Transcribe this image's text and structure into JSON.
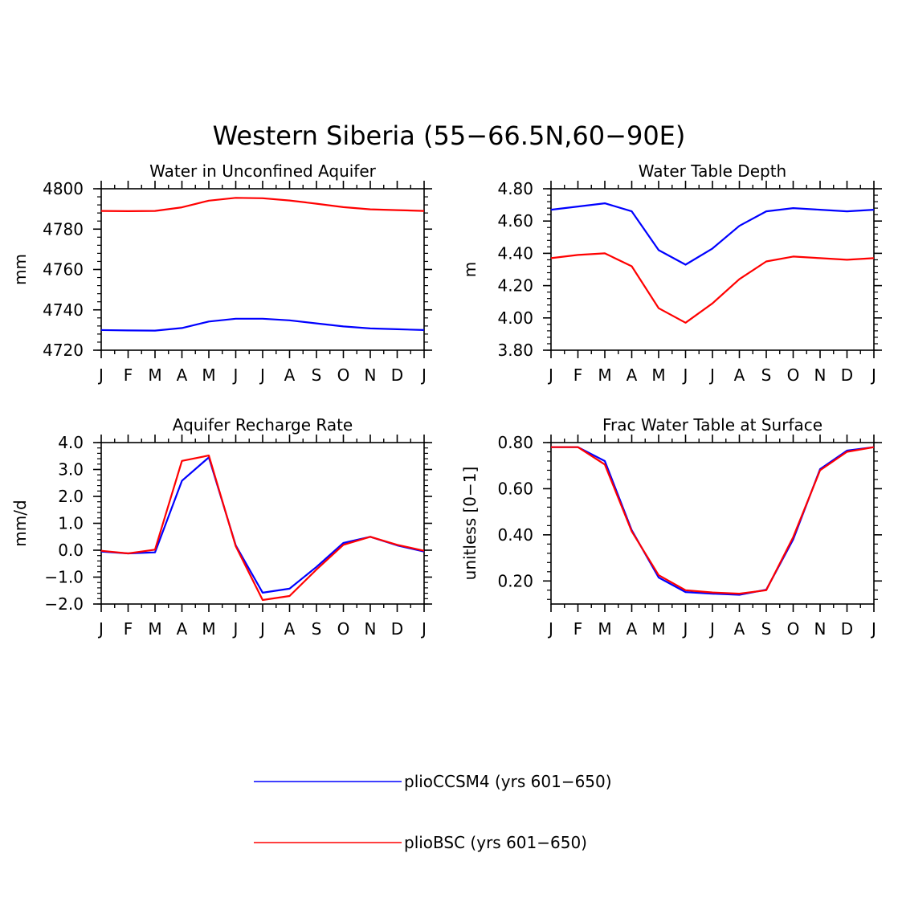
{
  "figure_title": "Western Siberia (55−66.5N,60−90E)",
  "legend": [
    {
      "label": "plioCCSM4 (yrs 601−650)",
      "color": "#0000ff"
    },
    {
      "label": "plioBSC (yrs 601−650)",
      "color": "#ff0000"
    }
  ],
  "chart_data": [
    {
      "type": "line",
      "title": "Water in Unconfined Aquifer",
      "ylabel": "mm",
      "categories": [
        "J",
        "F",
        "M",
        "A",
        "M",
        "J",
        "J",
        "A",
        "S",
        "O",
        "N",
        "D",
        "J"
      ],
      "ylim": [
        4720,
        4800
      ],
      "yticks": [
        "4720",
        "4740",
        "4760",
        "4780",
        "4800"
      ],
      "grid": false,
      "series": [
        {
          "name": "plioCCSM4 (yrs 601−650)",
          "color": "#0000ff",
          "values": [
            4730.0,
            4729.8,
            4729.7,
            4731.0,
            4734.2,
            4735.6,
            4735.6,
            4734.8,
            4733.3,
            4731.8,
            4730.8,
            4730.4,
            4730.0
          ]
        },
        {
          "name": "plioBSC (yrs 601−650)",
          "color": "#ff0000",
          "values": [
            4789.0,
            4788.9,
            4789.0,
            4790.8,
            4794.1,
            4795.5,
            4795.3,
            4794.2,
            4792.6,
            4790.9,
            4789.8,
            4789.4,
            4789.0
          ]
        }
      ]
    },
    {
      "type": "line",
      "title": "Water Table Depth",
      "ylabel": "m",
      "categories": [
        "J",
        "F",
        "M",
        "A",
        "M",
        "J",
        "J",
        "A",
        "S",
        "O",
        "N",
        "D",
        "J"
      ],
      "ylim": [
        3.8,
        4.8
      ],
      "yticks": [
        "3.80",
        "4.00",
        "4.20",
        "4.40",
        "4.60",
        "4.80"
      ],
      "grid": false,
      "series": [
        {
          "name": "plioCCSM4 (yrs 601−650)",
          "color": "#0000ff",
          "values": [
            4.67,
            4.69,
            4.71,
            4.66,
            4.42,
            4.33,
            4.43,
            4.57,
            4.66,
            4.68,
            4.67,
            4.66,
            4.67
          ]
        },
        {
          "name": "plioBSC (yrs 601−650)",
          "color": "#ff0000",
          "values": [
            4.37,
            4.39,
            4.4,
            4.32,
            4.06,
            3.97,
            4.09,
            4.24,
            4.35,
            4.38,
            4.37,
            4.36,
            4.37
          ]
        }
      ]
    },
    {
      "type": "line",
      "title": "Aquifer Recharge Rate",
      "ylabel": "mm/d",
      "categories": [
        "J",
        "F",
        "M",
        "A",
        "M",
        "J",
        "J",
        "A",
        "S",
        "O",
        "N",
        "D",
        "J"
      ],
      "ylim": [
        -2.0,
        4.0
      ],
      "yticks": [
        "−2.0",
        "−1.0",
        "0.0",
        "1.0",
        "2.0",
        "3.0",
        "4.0"
      ],
      "grid": false,
      "series": [
        {
          "name": "plioCCSM4 (yrs 601−650)",
          "color": "#0000ff",
          "values": [
            -0.05,
            -0.12,
            -0.08,
            2.58,
            3.45,
            0.18,
            -1.58,
            -1.43,
            -0.62,
            0.27,
            0.5,
            0.18,
            -0.05
          ]
        },
        {
          "name": "plioBSC (yrs 601−650)",
          "color": "#ff0000",
          "values": [
            -0.02,
            -0.12,
            0.02,
            3.32,
            3.52,
            0.15,
            -1.85,
            -1.7,
            -0.72,
            0.2,
            0.5,
            0.2,
            -0.02
          ]
        }
      ]
    },
    {
      "type": "line",
      "title": "Frac Water Table at Surface",
      "ylabel": "unitless [0−1]",
      "categories": [
        "J",
        "F",
        "M",
        "A",
        "M",
        "J",
        "J",
        "A",
        "S",
        "O",
        "N",
        "D",
        "J"
      ],
      "ylim": [
        0.1,
        0.8
      ],
      "yticks": [
        "0.20",
        "0.40",
        "0.60",
        "0.80"
      ],
      "grid": false,
      "series": [
        {
          "name": "plioCCSM4 (yrs 601−650)",
          "color": "#0000ff",
          "values": [
            0.78,
            0.78,
            0.72,
            0.42,
            0.215,
            0.152,
            0.145,
            0.14,
            0.162,
            0.38,
            0.685,
            0.765,
            0.78
          ]
        },
        {
          "name": "plioBSC (yrs 601−650)",
          "color": "#ff0000",
          "values": [
            0.78,
            0.78,
            0.705,
            0.415,
            0.225,
            0.16,
            0.15,
            0.145,
            0.16,
            0.39,
            0.68,
            0.76,
            0.78
          ]
        }
      ]
    }
  ]
}
